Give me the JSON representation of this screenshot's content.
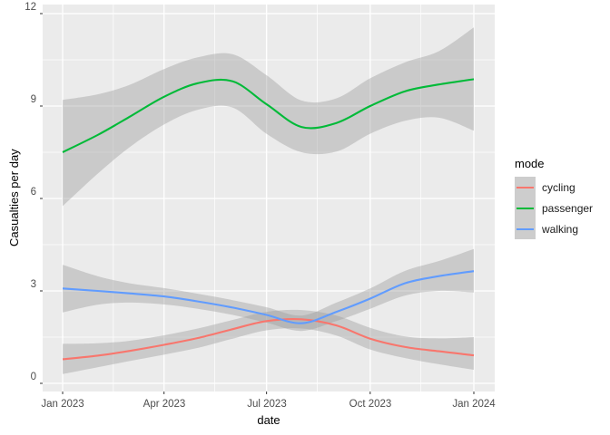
{
  "chart_data": {
    "type": "line",
    "title": "",
    "xlabel": "date",
    "ylabel": "Casualties per day",
    "x_tick_labels": [
      "Jan 2023",
      "Apr 2023",
      "Jul 2023",
      "Oct 2023",
      "Jan 2024"
    ],
    "y_tick_labels": [
      "0",
      "3",
      "6",
      "9",
      "12"
    ],
    "y_major_ticks": [
      0,
      3,
      6,
      9,
      12
    ],
    "y_minor_ticks": [
      1.5,
      4.5,
      7.5,
      10.5
    ],
    "x_major_tick_days": [
      0,
      90,
      181,
      273,
      365
    ],
    "x_minor_tick_days": [
      45,
      135,
      226,
      318
    ],
    "x_days": [
      0,
      31,
      59,
      90,
      120,
      151,
      181,
      212,
      243,
      273,
      304,
      334,
      365
    ],
    "x_range_days": [
      0,
      365
    ],
    "ylim": [
      -0.26,
      12.26
    ],
    "grid": true,
    "legend_position": "right",
    "legend_title": "mode",
    "panel_bg": "#EBEBEB",
    "grid_color": "#FFFFFF",
    "tick_color": "#333333",
    "ribbon_color": "#999999",
    "ribbon_opacity": 0.4,
    "series": [
      {
        "name": "cycling",
        "color": "#F8766D",
        "values": [
          0.78,
          0.9,
          1.05,
          1.25,
          1.47,
          1.76,
          2.02,
          2.08,
          1.88,
          1.45,
          1.18,
          1.04,
          0.91
        ],
        "lower": [
          0.3,
          0.52,
          0.72,
          0.93,
          1.15,
          1.45,
          1.72,
          1.78,
          1.55,
          1.1,
          0.82,
          0.62,
          0.44
        ],
        "upper": [
          1.28,
          1.3,
          1.38,
          1.56,
          1.78,
          2.06,
          2.32,
          2.38,
          2.2,
          1.8,
          1.52,
          1.46,
          1.5
        ]
      },
      {
        "name": "passenger",
        "color": "#00BA38",
        "values": [
          7.5,
          8.06,
          8.64,
          9.3,
          9.74,
          9.8,
          9.06,
          8.32,
          8.45,
          9.0,
          9.48,
          9.7,
          9.87
        ],
        "lower": [
          5.75,
          6.8,
          7.65,
          8.4,
          8.88,
          8.95,
          8.1,
          7.5,
          7.52,
          8.1,
          8.52,
          8.62,
          8.2
        ],
        "upper": [
          9.2,
          9.38,
          9.68,
          10.2,
          10.58,
          10.68,
          10.0,
          9.18,
          9.25,
          9.9,
          10.42,
          10.78,
          11.55
        ]
      },
      {
        "name": "walking",
        "color": "#619CFF",
        "values": [
          3.08,
          3.0,
          2.92,
          2.82,
          2.66,
          2.46,
          2.22,
          1.95,
          2.32,
          2.75,
          3.25,
          3.48,
          3.64
        ],
        "lower": [
          2.3,
          2.55,
          2.62,
          2.56,
          2.42,
          2.22,
          1.97,
          1.7,
          2.02,
          2.42,
          2.85,
          3.0,
          2.95
        ],
        "upper": [
          3.85,
          3.48,
          3.25,
          3.09,
          2.91,
          2.7,
          2.47,
          2.2,
          2.62,
          3.08,
          3.65,
          3.97,
          4.36
        ]
      }
    ]
  }
}
